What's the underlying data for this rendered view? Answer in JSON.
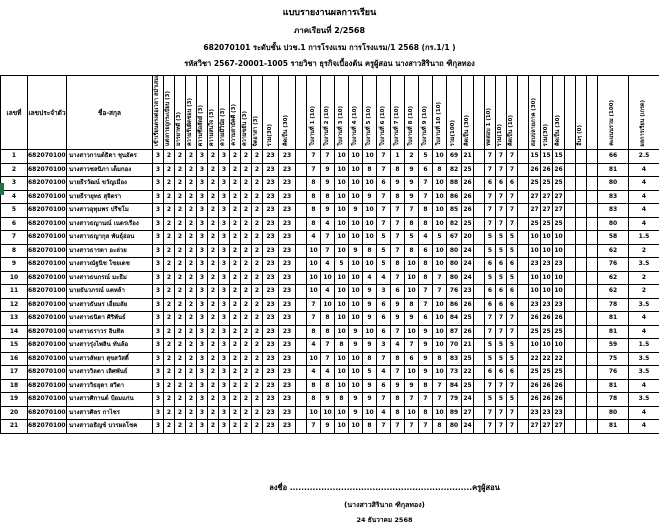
{
  "header": {
    "title": "แบบรายงานผลการเรียน",
    "semester": "ภาคเรียนที่ 2/2568",
    "class_line": "682070101 ระดับชั้น ปวช.1 การโรงแรม การโรงแรม/1 2568 (กร.1/1 )",
    "subject_line": "รหัสวิชา 2567-20001-1005    รายวิชา ธุรกิจเบื้องต้น    ครูผู้สอน นางสาวสิรินาถ ฑิกุลทอง"
  },
  "accent": {
    "selection_color": "#217346"
  },
  "table": {
    "fixed_headers": [
      {
        "label": "เลขที่",
        "w": 27
      },
      {
        "label": "เลขประจำตัว",
        "w": 39
      },
      {
        "label": "ชื่อ-สกุล",
        "w": 86
      }
    ],
    "rotated_headers": [
      {
        "label": "เข้าเรียนตรงต่อเวลา สม่ำเสมอ (3)",
        "w": 11
      },
      {
        "label": "แต่งกายถูกระเบียบ (3)",
        "w": 11
      },
      {
        "label": "มารยาทดี (3)",
        "w": 11
      },
      {
        "label": "ความรับผิดชอบ (3)",
        "w": 11
      },
      {
        "label": "ความซื่อสัตย์ (3)",
        "w": 11
      },
      {
        "label": "ความสนใจ (3)",
        "w": 11
      },
      {
        "label": "ความมีวินัย (3)",
        "w": 11
      },
      {
        "label": "ความสามัคคี (3)",
        "w": 11
      },
      {
        "label": "ความขยัน (3)",
        "w": 11
      },
      {
        "label": "จิตอาสา (3)",
        "w": 11
      },
      {
        "label": "รวม(30)",
        "w": 16
      },
      {
        "label": "คิดเป็น (30)",
        "w": 17
      },
      {
        "label": "",
        "w": 11
      },
      {
        "label": "ใบงานที่ 1 (10)",
        "w": 14
      },
      {
        "label": "ใบงานที่ 2 (10)",
        "w": 14
      },
      {
        "label": "ใบงานที่ 3 (10)",
        "w": 14
      },
      {
        "label": "ใบงานที่ 4 (10)",
        "w": 14
      },
      {
        "label": "ใบงานที่ 5 (10)",
        "w": 14
      },
      {
        "label": "ใบงานที่ 6 (10)",
        "w": 14
      },
      {
        "label": "ใบงานที่ 7 (10)",
        "w": 14
      },
      {
        "label": "ใบงานที่ 8 (10)",
        "w": 14
      },
      {
        "label": "ใบงานที่ 9 (10)",
        "w": 14
      },
      {
        "label": "ใบงานที่ 10 (10)",
        "w": 14
      },
      {
        "label": "รวม(100)",
        "w": 15
      },
      {
        "label": "คิดเป็น (30)",
        "w": 12
      },
      {
        "label": "",
        "w": 11
      },
      {
        "label": "ทดสอบ 1 (10)",
        "w": 11
      },
      {
        "label": "รวม(10)",
        "w": 11
      },
      {
        "label": "คิดเป็น (10)",
        "w": 11
      },
      {
        "label": "",
        "w": 11
      },
      {
        "label": "สอบปลายภาค (30)",
        "w": 12
      },
      {
        "label": "รวม(30)",
        "w": 12
      },
      {
        "label": "คิดเป็น (30)",
        "w": 12
      },
      {
        "label": "",
        "w": 11
      },
      {
        "label": "อื่นๆ (0)",
        "w": 11
      },
      {
        "label": "",
        "w": 11
      },
      {
        "label": "คะแนนรวม (100)",
        "w": 31
      },
      {
        "label": "ผลการเรียน (เกรด)",
        "w": 31
      }
    ],
    "rows": [
      {
        "no": 1,
        "id": "68207010001",
        "name": "นางสาวกานต์ธิดา ชุนอัคร",
        "behavior": [
          3,
          2,
          2,
          2,
          3,
          2,
          3,
          2,
          2,
          2
        ],
        "b_sum": 23,
        "b_scaled": 23,
        "works": [
          7,
          7,
          10,
          10,
          10,
          7,
          1,
          2,
          5,
          10
        ],
        "w_sum": 69,
        "w_scaled": 21,
        "test": 7,
        "final": 15,
        "total": 66,
        "grade": "2.5"
      },
      {
        "no": 2,
        "id": "68207010003",
        "name": "นางสาวชลนิภา เต็มกอง",
        "behavior": [
          3,
          2,
          2,
          2,
          3,
          2,
          3,
          2,
          2,
          2
        ],
        "b_sum": 23,
        "b_scaled": 23,
        "works": [
          7,
          9,
          10,
          10,
          8,
          7,
          8,
          9,
          6,
          8
        ],
        "w_sum": 82,
        "w_scaled": 25,
        "test": 7,
        "final": 26,
        "total": 81,
        "grade": "4"
      },
      {
        "no": 3,
        "id": "68207010004",
        "name": "นายธีรวัฒน์  ขวัญเมือง",
        "behavior": [
          3,
          2,
          2,
          2,
          3,
          2,
          3,
          2,
          2,
          2
        ],
        "b_sum": 23,
        "b_scaled": 23,
        "works": [
          8,
          9,
          10,
          10,
          10,
          6,
          9,
          9,
          7,
          10
        ],
        "w_sum": 88,
        "w_scaled": 26,
        "test": 6,
        "final": 25,
        "total": 80,
        "grade": "4"
      },
      {
        "no": 4,
        "id": "68207010005",
        "name": "นายธีรายุทธ  สุจิตรา",
        "behavior": [
          3,
          2,
          2,
          2,
          3,
          2,
          3,
          2,
          2,
          2
        ],
        "b_sum": 23,
        "b_scaled": 23,
        "works": [
          8,
          8,
          10,
          10,
          9,
          7,
          8,
          9,
          7,
          10
        ],
        "w_sum": 86,
        "w_scaled": 26,
        "test": 7,
        "final": 27,
        "total": 83,
        "grade": "4"
      },
      {
        "no": 5,
        "id": "68207010006",
        "name": "นางสาวอุทุมพร ปรีชโม",
        "behavior": [
          3,
          2,
          2,
          2,
          3,
          2,
          3,
          2,
          2,
          2
        ],
        "b_sum": 23,
        "b_scaled": 23,
        "works": [
          8,
          9,
          10,
          9,
          10,
          7,
          7,
          7,
          8,
          10
        ],
        "w_sum": 85,
        "w_scaled": 26,
        "test": 7,
        "final": 27,
        "total": 83,
        "grade": "4"
      },
      {
        "no": 6,
        "id": "68207010007",
        "name": "นางสาวธญานณ์ เนตรเรือง",
        "behavior": [
          3,
          2,
          2,
          2,
          3,
          2,
          3,
          2,
          2,
          2
        ],
        "b_sum": 23,
        "b_scaled": 23,
        "works": [
          8,
          4,
          10,
          10,
          10,
          7,
          7,
          8,
          8,
          10
        ],
        "w_sum": 82,
        "w_scaled": 25,
        "test": 7,
        "final": 25,
        "total": 80,
        "grade": "4"
      },
      {
        "no": 7,
        "id": "68207010008",
        "name": "นางสาวธญากุล พันธุ์อ่อน",
        "behavior": [
          3,
          2,
          2,
          2,
          3,
          2,
          3,
          2,
          2,
          2
        ],
        "b_sum": 23,
        "b_scaled": 23,
        "works": [
          4,
          7,
          10,
          10,
          10,
          5,
          7,
          5,
          4,
          5
        ],
        "w_sum": 67,
        "w_scaled": 20,
        "test": 5,
        "final": 10,
        "total": 58,
        "grade": "1.5"
      },
      {
        "no": 8,
        "id": "68207010009",
        "name": "นางสาวธารดา  อะล่วย",
        "behavior": [
          3,
          2,
          2,
          2,
          3,
          2,
          3,
          2,
          2,
          2
        ],
        "b_sum": 23,
        "b_scaled": 23,
        "works": [
          10,
          7,
          10,
          9,
          8,
          5,
          7,
          8,
          6,
          10
        ],
        "w_sum": 80,
        "w_scaled": 24,
        "test": 5,
        "final": 10,
        "total": 62,
        "grade": "2"
      },
      {
        "no": 9,
        "id": "68207010010",
        "name": "นางสาวณัฐนิช โชยเดช",
        "behavior": [
          3,
          2,
          2,
          2,
          3,
          2,
          3,
          2,
          2,
          2
        ],
        "b_sum": 23,
        "b_scaled": 23,
        "works": [
          10,
          4,
          5,
          10,
          10,
          5,
          8,
          10,
          8,
          10
        ],
        "w_sum": 80,
        "w_scaled": 24,
        "test": 6,
        "final": 23,
        "total": 76,
        "grade": "3.5"
      },
      {
        "no": 10,
        "id": "68207010012",
        "name": "นางสาวธนกรณ์ มะธีม",
        "behavior": [
          3,
          2,
          2,
          2,
          3,
          2,
          3,
          2,
          2,
          2
        ],
        "b_sum": 23,
        "b_scaled": 23,
        "works": [
          10,
          10,
          10,
          10,
          4,
          4,
          7,
          10,
          8,
          7
        ],
        "w_sum": 80,
        "w_scaled": 24,
        "test": 5,
        "final": 10,
        "total": 62,
        "grade": "2"
      },
      {
        "no": 11,
        "id": "68207010013",
        "name": "นายธันวภรณ์  แคหล้า",
        "behavior": [
          3,
          2,
          2,
          2,
          3,
          2,
          3,
          2,
          2,
          2
        ],
        "b_sum": 23,
        "b_scaled": 23,
        "works": [
          10,
          4,
          10,
          10,
          9,
          3,
          6,
          10,
          7,
          7
        ],
        "w_sum": 76,
        "w_scaled": 23,
        "test": 6,
        "final": 10,
        "total": 62,
        "grade": "2"
      },
      {
        "no": 12,
        "id": "68207010015",
        "name": "นางสาวธันษร เอี่ยมลัย",
        "behavior": [
          3,
          2,
          2,
          2,
          3,
          2,
          3,
          2,
          2,
          2
        ],
        "b_sum": 23,
        "b_scaled": 23,
        "works": [
          7,
          10,
          10,
          10,
          9,
          6,
          9,
          8,
          7,
          10
        ],
        "w_sum": 86,
        "w_scaled": 26,
        "test": 6,
        "final": 23,
        "total": 78,
        "grade": "3.5"
      },
      {
        "no": 13,
        "id": "68207010017",
        "name": "นางสาวธนิดา  ศิริพันธ์",
        "behavior": [
          3,
          2,
          2,
          2,
          3,
          2,
          3,
          2,
          2,
          2
        ],
        "b_sum": 23,
        "b_scaled": 23,
        "works": [
          7,
          8,
          10,
          10,
          9,
          6,
          9,
          9,
          6,
          10
        ],
        "w_sum": 84,
        "w_scaled": 25,
        "test": 7,
        "final": 26,
        "total": 81,
        "grade": "4"
      },
      {
        "no": 14,
        "id": "68207010018",
        "name": "นางสาวธราวร อินทิล",
        "behavior": [
          3,
          2,
          2,
          2,
          3,
          2,
          3,
          2,
          2,
          2
        ],
        "b_sum": 23,
        "b_scaled": 23,
        "works": [
          8,
          8,
          10,
          9,
          10,
          6,
          7,
          10,
          9,
          10
        ],
        "w_sum": 87,
        "w_scaled": 26,
        "test": 7,
        "final": 25,
        "total": 81,
        "grade": "4"
      },
      {
        "no": 15,
        "id": "68207010019",
        "name": "นางสาวรุ่งไพลิน ทันล้อ",
        "behavior": [
          3,
          2,
          2,
          2,
          3,
          2,
          3,
          2,
          2,
          2
        ],
        "b_sum": 23,
        "b_scaled": 23,
        "works": [
          4,
          7,
          8,
          9,
          9,
          3,
          4,
          7,
          9,
          10
        ],
        "w_sum": 70,
        "w_scaled": 21,
        "test": 5,
        "final": 10,
        "total": 59,
        "grade": "1.5"
      },
      {
        "no": 16,
        "id": "68207010020",
        "name": "นางสาวลัทยา สุขสวัสดิ์",
        "behavior": [
          3,
          2,
          2,
          2,
          3,
          2,
          3,
          2,
          2,
          2
        ],
        "b_sum": 23,
        "b_scaled": 23,
        "works": [
          10,
          7,
          10,
          10,
          8,
          7,
          8,
          6,
          9,
          8
        ],
        "w_sum": 83,
        "w_scaled": 25,
        "test": 5,
        "final": 22,
        "total": 75,
        "grade": "3.5"
      },
      {
        "no": 17,
        "id": "68207010021",
        "name": "นางสาววิลดา  เลิศพันธ์",
        "behavior": [
          3,
          2,
          2,
          2,
          3,
          2,
          3,
          2,
          2,
          2
        ],
        "b_sum": 23,
        "b_scaled": 23,
        "works": [
          4,
          4,
          10,
          10,
          5,
          4,
          7,
          10,
          9,
          10
        ],
        "w_sum": 73,
        "w_scaled": 22,
        "test": 6,
        "final": 25,
        "total": 76,
        "grade": "3.5"
      },
      {
        "no": 18,
        "id": "68207010022",
        "name": "นางสาววิธยุดา สวิตา",
        "behavior": [
          3,
          2,
          2,
          2,
          3,
          2,
          3,
          2,
          2,
          2
        ],
        "b_sum": 23,
        "b_scaled": 23,
        "works": [
          8,
          8,
          10,
          10,
          9,
          6,
          9,
          9,
          8,
          7
        ],
        "w_sum": 84,
        "w_scaled": 25,
        "test": 7,
        "final": 26,
        "total": 81,
        "grade": "4"
      },
      {
        "no": 19,
        "id": "68207010023",
        "name": "นางสาวศิกานต์ ป้อมแก่น",
        "behavior": [
          3,
          2,
          2,
          2,
          3,
          2,
          3,
          2,
          2,
          2
        ],
        "b_sum": 23,
        "b_scaled": 23,
        "works": [
          8,
          9,
          8,
          9,
          9,
          7,
          8,
          7,
          7,
          7
        ],
        "w_sum": 79,
        "w_scaled": 24,
        "test": 5,
        "final": 26,
        "total": 78,
        "grade": "3.5"
      },
      {
        "no": 20,
        "id": "68207010024",
        "name": "นางสาวศิลร  กาไชร",
        "behavior": [
          3,
          2,
          2,
          2,
          3,
          2,
          3,
          2,
          2,
          2
        ],
        "b_sum": 23,
        "b_scaled": 23,
        "works": [
          10,
          10,
          10,
          9,
          10,
          4,
          8,
          10,
          8,
          10
        ],
        "w_sum": 89,
        "w_scaled": 27,
        "test": 7,
        "final": 23,
        "total": 80,
        "grade": "4"
      },
      {
        "no": 21,
        "id": "68207010025",
        "name": "นางสาวอธิญช์ บวรผลโชค",
        "behavior": [
          3,
          2,
          2,
          2,
          3,
          2,
          3,
          2,
          2,
          2
        ],
        "b_sum": 23,
        "b_scaled": 23,
        "works": [
          7,
          9,
          10,
          10,
          8,
          7,
          7,
          7,
          7,
          8
        ],
        "w_sum": 80,
        "w_scaled": 24,
        "test": 7,
        "final": 27,
        "total": 81,
        "grade": "4"
      }
    ]
  },
  "footer": {
    "sign_line": "ลงชื่อ ................................................................ครูผู้สอน",
    "name_line": "(นางสาวสิรินาถ ฑิกุลทอง)",
    "date_line": "24 ธันวาคม 2568"
  }
}
